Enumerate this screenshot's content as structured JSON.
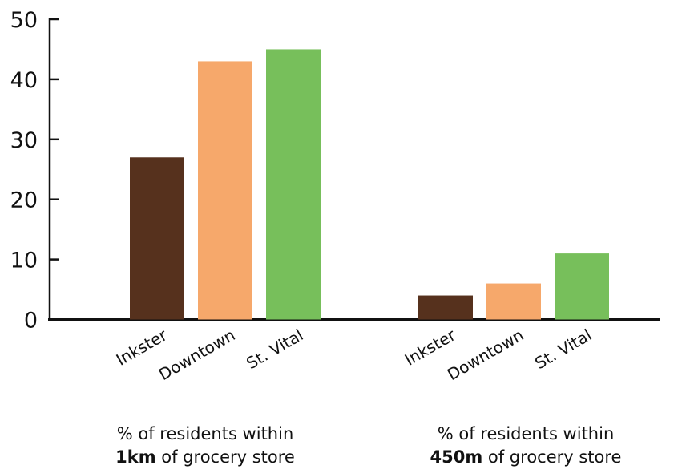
{
  "chart_data": {
    "type": "bar",
    "title": "",
    "xlabel": "",
    "ylabel": "",
    "ylim": [
      0,
      50
    ],
    "yticks": [
      0,
      10,
      20,
      30,
      40,
      50
    ],
    "grid": false,
    "legend": "none",
    "groups": [
      {
        "caption_line1": "% of residents within",
        "caption_bold": "1km",
        "caption_rest": " of grocery store",
        "categories": [
          "Inkster",
          "Downtown",
          "St. Vital"
        ],
        "values": [
          27,
          43,
          45
        ]
      },
      {
        "caption_line1": "% of residents within",
        "caption_bold": "450m",
        "caption_rest": " of grocery store",
        "categories": [
          "Inkster",
          "Downtown",
          "St. Vital"
        ],
        "values": [
          4,
          6,
          11
        ]
      }
    ],
    "colors": {
      "Inkster": "#56311d",
      "Downtown": "#f6a86b",
      "St. Vital": "#77bf5b"
    }
  }
}
